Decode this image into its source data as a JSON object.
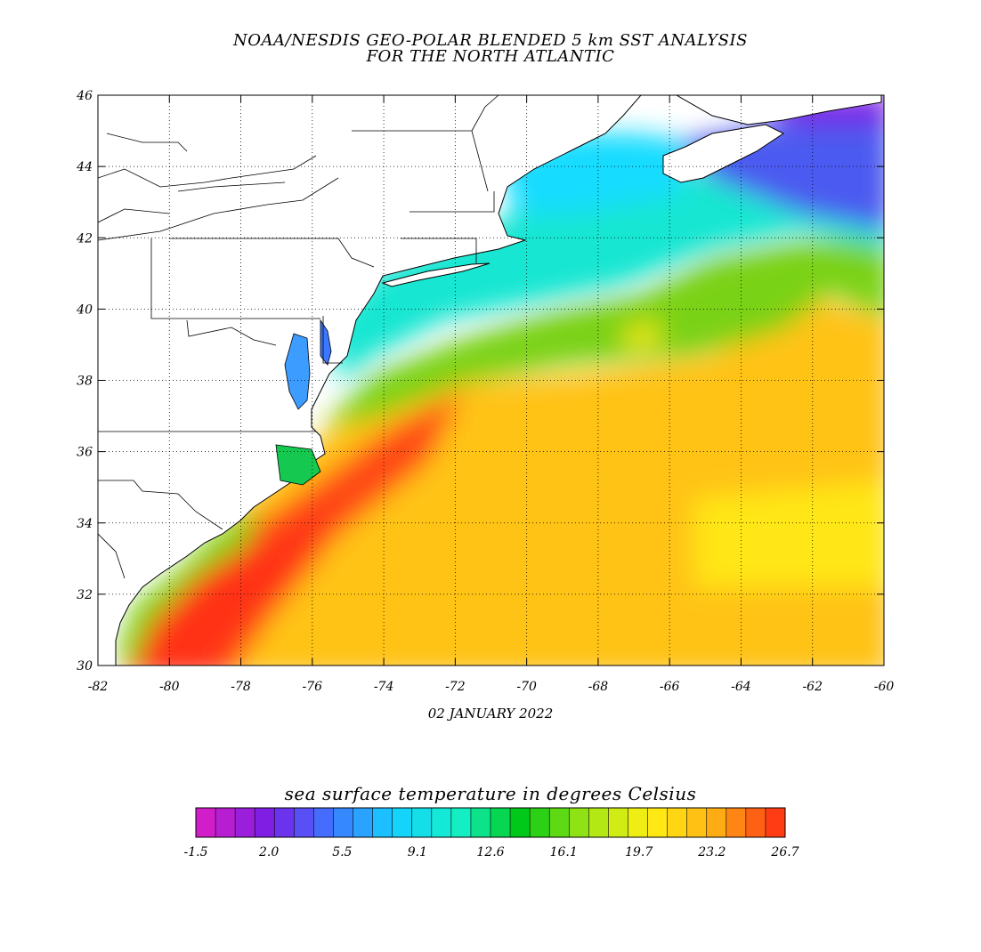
{
  "map": {
    "title_line1": "NOAA/NESDIS GEO-POLAR BLENDED 5 km SST ANALYSIS",
    "title_line2": "FOR THE NORTH ATLANTIC",
    "date": "02 JANUARY 2022",
    "lon_labels": [
      "-82",
      "-80",
      "-78",
      "-76",
      "-74",
      "-72",
      "-70",
      "-68",
      "-66",
      "-64",
      "-62",
      "-60"
    ],
    "lat_labels": [
      "30",
      "32",
      "34",
      "36",
      "38",
      "40",
      "42",
      "44",
      "46"
    ],
    "lon_range": [
      -82,
      -60
    ],
    "lat_range": [
      30,
      46
    ],
    "grid": true
  },
  "colorbar": {
    "title": "sea surface temperature in degrees Celsius",
    "tick_labels": [
      "-1.5",
      "2.0",
      "5.5",
      "9.1",
      "12.6",
      "16.1",
      "19.7",
      "23.2",
      "26.7"
    ],
    "range": [
      -1.5,
      26.7
    ],
    "colors": [
      "#d21ec8",
      "#7a1ee6",
      "#3c78ff",
      "#14d2ff",
      "#14f0c8",
      "#00c814",
      "#a0e614",
      "#fff014",
      "#ffb414",
      "#ff3c14"
    ]
  }
}
